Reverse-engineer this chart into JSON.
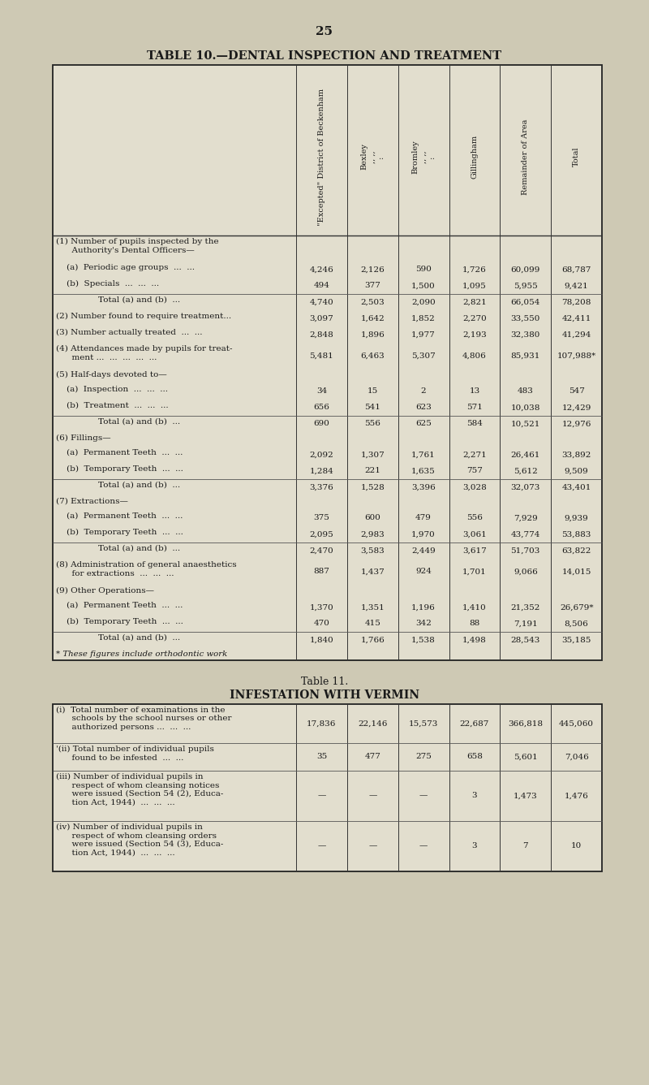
{
  "page_number": "25",
  "table10_title": "TABLE 10.—DENTAL INSPECTION AND TREATMENT",
  "table11_title_small": "Table 11.",
  "table11_title_large": "INFESTATION WITH VERMIN",
  "bg_color": "#cec9b4",
  "cell_bg": "#e2dece",
  "text_color": "#1a1a1a",
  "col_headers": [
    "\"Excepted\" District of Beckenham",
    "Bexley\n„  „\n:",
    "Bromley\n„  „\n:",
    "Gillingham",
    "Remainder of Area",
    "Total"
  ],
  "table10_rows": [
    {
      "label": "(1) Number of pupils inspected by the\n      Authority's Dental Officers—",
      "vals": [
        "",
        "",
        "",
        "",
        "",
        ""
      ],
      "is_header": true
    },
    {
      "label": "    (a)  Periodic age groups  ...  ...",
      "vals": [
        "4,246",
        "2,126",
        "590",
        "1,726",
        "60,099",
        "68,787"
      ]
    },
    {
      "label": "    (b)  Specials  ...  ...  ...",
      "vals": [
        "494",
        "377",
        "1,500",
        "1,095",
        "5,955",
        "9,421"
      ]
    },
    {
      "label": "                Total (a) and (b)  ...",
      "vals": [
        "4,740",
        "2,503",
        "2,090",
        "2,821",
        "66,054",
        "78,208"
      ],
      "total": true
    },
    {
      "label": "(2) Number found to require treatment...",
      "vals": [
        "3,097",
        "1,642",
        "1,852",
        "2,270",
        "33,550",
        "42,411"
      ]
    },
    {
      "label": "(3) Number actually treated  ...  ...",
      "vals": [
        "2,848",
        "1,896",
        "1,977",
        "2,193",
        "32,380",
        "41,294"
      ]
    },
    {
      "label": "(4) Attendances made by pupils for treat-\n      ment ...  ...  ...  ...  ...",
      "vals": [
        "5,481",
        "6,463",
        "5,307",
        "4,806",
        "85,931",
        "107,988*"
      ]
    },
    {
      "label": "(5) Half-days devoted to—",
      "vals": [
        "",
        "",
        "",
        "",
        "",
        ""
      ],
      "is_header": true
    },
    {
      "label": "    (a)  Inspection  ...  ...  ...",
      "vals": [
        "34",
        "15",
        "2",
        "13",
        "483",
        "547"
      ]
    },
    {
      "label": "    (b)  Treatment  ...  ...  ...",
      "vals": [
        "656",
        "541",
        "623",
        "571",
        "10,038",
        "12,429"
      ]
    },
    {
      "label": "                Total (a) and (b)  ...",
      "vals": [
        "690",
        "556",
        "625",
        "584",
        "10,521",
        "12,976"
      ],
      "total": true
    },
    {
      "label": "(6) Fillings—",
      "vals": [
        "",
        "",
        "",
        "",
        "",
        ""
      ],
      "is_header": true
    },
    {
      "label": "    (a)  Permanent Teeth  ...  ...",
      "vals": [
        "2,092",
        "1,307",
        "1,761",
        "2,271",
        "26,461",
        "33,892"
      ]
    },
    {
      "label": "    (b)  Temporary Teeth  ...  ...",
      "vals": [
        "1,284",
        "221",
        "1,635",
        "757",
        "5,612",
        "9,509"
      ]
    },
    {
      "label": "                Total (a) and (b)  ...",
      "vals": [
        "3,376",
        "1,528",
        "3,396",
        "3,028",
        "32,073",
        "43,401"
      ],
      "total": true
    },
    {
      "label": "(7) Extractions—",
      "vals": [
        "",
        "",
        "",
        "",
        "",
        ""
      ],
      "is_header": true
    },
    {
      "label": "    (a)  Permanent Teeth  ...  ...",
      "vals": [
        "375",
        "600",
        "479",
        "556",
        "7,929",
        "9,939"
      ]
    },
    {
      "label": "    (b)  Temporary Teeth  ...  ...",
      "vals": [
        "2,095",
        "2,983",
        "1,970",
        "3,061",
        "43,774",
        "53,883"
      ]
    },
    {
      "label": "                Total (a) and (b)  ...",
      "vals": [
        "2,470",
        "3,583",
        "2,449",
        "3,617",
        "51,703",
        "63,822"
      ],
      "total": true
    },
    {
      "label": "(8) Administration of general anaesthetics\n      for extractions  ...  ...  ...",
      "vals": [
        "887",
        "1,437",
        "924",
        "1,701",
        "9,066",
        "14,015"
      ]
    },
    {
      "label": "(9) Other Operations—",
      "vals": [
        "",
        "",
        "",
        "",
        "",
        ""
      ],
      "is_header": true
    },
    {
      "label": "    (a)  Permanent Teeth  ...  ...",
      "vals": [
        "1,370",
        "1,351",
        "1,196",
        "1,410",
        "21,352",
        "26,679*"
      ]
    },
    {
      "label": "    (b)  Temporary Teeth  ...  ...",
      "vals": [
        "470",
        "415",
        "342",
        "88",
        "7,191",
        "8,506"
      ]
    },
    {
      "label": "                Total (a) and (b)  ...",
      "vals": [
        "1,840",
        "1,766",
        "1,538",
        "1,498",
        "28,543",
        "35,185"
      ],
      "total": true
    },
    {
      "label": "* These figures include orthodontic work",
      "vals": [
        "",
        "",
        "",
        "",
        "",
        ""
      ],
      "footnote": true
    }
  ],
  "table11_rows": [
    {
      "label": "(i)  Total number of examinations in the\n      schools by the school nurses or other\n      authorized persons ...  ...  ...",
      "vals": [
        "17,836",
        "22,146",
        "15,573",
        "22,687",
        "366,818",
        "445,060"
      ]
    },
    {
      "label": "'(ii) Total number of individual pupils\n      found to be infested  ...  ...",
      "vals": [
        "35",
        "477",
        "275",
        "658",
        "5,601",
        "7,046"
      ]
    },
    {
      "label": "(iii) Number of individual pupils in\n      respect of whom cleansing notices\n      were issued (Section 54 (2), Educa-\n      tion Act, 1944)  ...  ...  ...",
      "vals": [
        "—",
        "—",
        "—",
        "3",
        "1,473",
        "1,476"
      ]
    },
    {
      "label": "(iv) Number of individual pupils in\n      respect of whom cleansing orders\n      were issued (Section 54 (3), Educa-\n      tion Act, 1944)  ...  ...  ...",
      "vals": [
        "—",
        "—",
        "—",
        "3",
        "7",
        "10"
      ]
    }
  ]
}
